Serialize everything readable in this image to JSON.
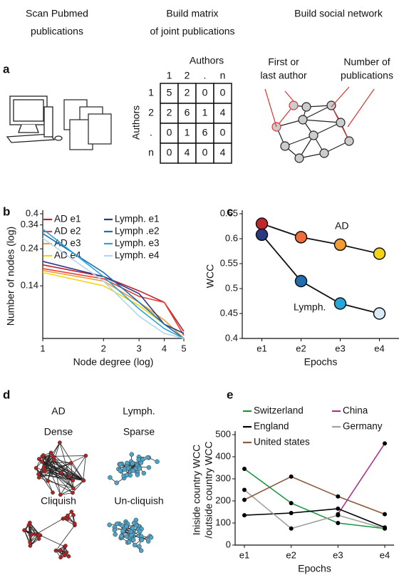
{
  "panel_a": {
    "label": "a",
    "step_1": [
      "Scan Pubmed",
      "publications"
    ],
    "step_2": [
      "Build matrix",
      "of joint publications"
    ],
    "step_3": "Build social network",
    "matrix": {
      "axis_label": "Authors",
      "column_labels": [
        "1",
        "2",
        ".",
        "n"
      ],
      "row_labels": [
        "1",
        "2",
        ".",
        "n"
      ],
      "rows": [
        [
          5,
          2,
          0,
          0
        ],
        [
          2,
          6,
          1,
          4
        ],
        [
          0,
          1,
          6,
          0
        ],
        [
          0,
          4,
          0,
          4
        ]
      ]
    },
    "network_labels": [
      [
        "First or",
        "last author"
      ],
      [
        "Number of",
        "publications"
      ]
    ]
  },
  "panel_d": {
    "label": "d",
    "columns": [
      "AD",
      "Lymph."
    ],
    "top": [
      "Dense",
      "Sparse"
    ],
    "bottom": [
      "Cliquish",
      "Un-cliquish"
    ]
  },
  "chart_data": [
    {
      "type": "line",
      "label": "b",
      "xlabel": "Node degree (log)",
      "ylabel": [
        "Number of nodes (log)"
      ],
      "x": [
        1,
        2,
        3,
        4,
        5
      ],
      "xlim": [
        1,
        5
      ],
      "xticks": [
        1,
        2,
        3,
        4,
        5
      ],
      "xlog": true,
      "ylim": [
        0.065,
        0.4
      ],
      "yticks": [
        0.14,
        0.24,
        0.34,
        0.4
      ],
      "ylog": true,
      "series": [
        {
          "name": "AD e1",
          "color": "#b8232e",
          "values": [
            0.19,
            0.16,
            0.13,
            0.11,
            0.072
          ]
        },
        {
          "name": "AD e2",
          "color": "#e8413c",
          "values": [
            0.18,
            0.155,
            0.12,
            0.11,
            0.068
          ]
        },
        {
          "name": "AD e3",
          "color": "#f39c32",
          "values": [
            0.175,
            0.15,
            0.11,
            0.085,
            0.065
          ]
        },
        {
          "name": "AD e4",
          "color": "#f5d414",
          "values": [
            0.17,
            0.14,
            0.105,
            0.08,
            0.065
          ]
        },
        {
          "name": "Lymph. e1",
          "color": "#2b3a80",
          "values": [
            0.2,
            0.16,
            0.125,
            0.08,
            0.07
          ]
        },
        {
          "name": "Lymph .e2",
          "color": "#1f6fb0",
          "values": [
            0.3,
            0.17,
            0.11,
            0.08,
            0.065
          ]
        },
        {
          "name": "Lymph. e3",
          "color": "#25a7dc",
          "values": [
            0.32,
            0.16,
            0.1,
            0.075,
            0.065
          ]
        },
        {
          "name": "Lymph. e4",
          "color": "#b3d6ee",
          "values": [
            0.28,
            0.15,
            0.09,
            0.07,
            0.065
          ]
        }
      ]
    },
    {
      "type": "line",
      "label": "c",
      "xlabel": "Epochs",
      "ylabel": [
        "WCC"
      ],
      "categories": [
        "e1",
        "e2",
        "e3",
        "e4"
      ],
      "ylim": [
        0.4,
        0.65
      ],
      "yticks": [
        0.4,
        0.45,
        0.5,
        0.55,
        0.6,
        0.65
      ],
      "marker_size": 8,
      "annotations": [
        "AD",
        "Lymph."
      ],
      "series": [
        {
          "color": "#111111",
          "marker_colors": [
            "#c0272d",
            "#f26b3a",
            "#f39c32",
            "#f5d414"
          ],
          "values": [
            0.63,
            0.603,
            0.588,
            0.57
          ]
        },
        {
          "color": "#111111",
          "marker_colors": [
            "#2b3a80",
            "#1f6fb0",
            "#25a7dc",
            "#d7eaf6"
          ],
          "values": [
            0.608,
            0.515,
            0.47,
            0.45
          ]
        }
      ]
    },
    {
      "type": "line",
      "label": "e",
      "xlabel": "Epochs",
      "ylabel": [
        "Iniside country WCC",
        "/outside country WCC"
      ],
      "categories": [
        "e1",
        "e2",
        "e3",
        "e4"
      ],
      "ylim": [
        0,
        500
      ],
      "yticks": [
        0,
        100,
        200,
        300,
        400,
        500
      ],
      "marker_size": 3,
      "marker_color": "#000000",
      "series": [
        {
          "name": "Switzerland",
          "color": "#1a9641",
          "values": [
            345,
            190,
            100,
            75
          ]
        },
        {
          "name": "China",
          "color": "#a8358f",
          "values": [
            null,
            null,
            140,
            460
          ]
        },
        {
          "name": "England",
          "color": "#000000",
          "values": [
            135,
            145,
            165,
            80
          ]
        },
        {
          "name": "Germany",
          "color": "#a0a0a0",
          "values": [
            250,
            75,
            135,
            75
          ]
        },
        {
          "name": "United states",
          "color": "#8b5a3c",
          "values": [
            205,
            310,
            220,
            140
          ]
        }
      ]
    }
  ]
}
